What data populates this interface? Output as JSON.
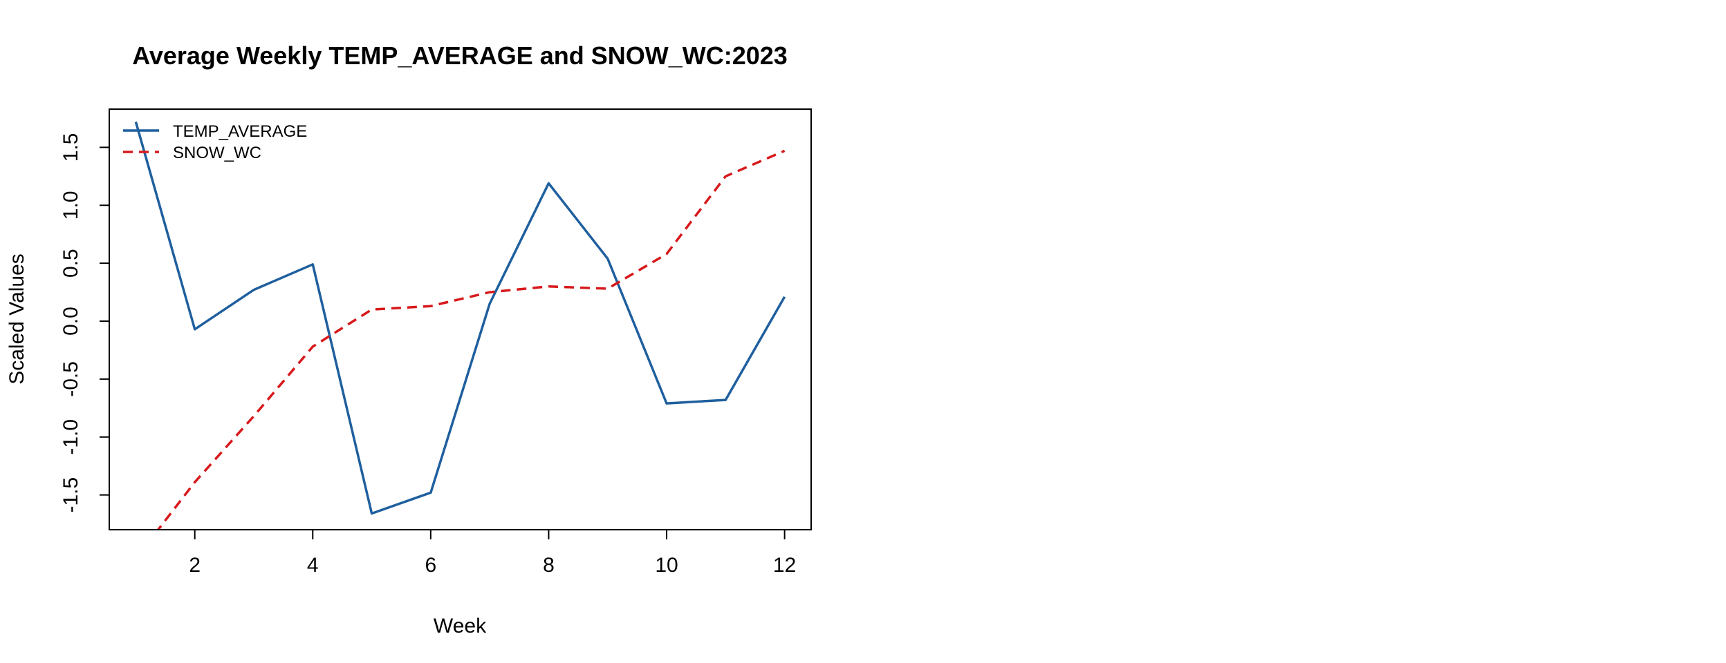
{
  "chart_data": {
    "type": "line",
    "title": "Average Weekly TEMP_AVERAGE and SNOW_WC:2023",
    "xlabel": "Week",
    "ylabel": "Scaled Values",
    "x": [
      1,
      2,
      3,
      4,
      5,
      6,
      7,
      8,
      9,
      10,
      11,
      12
    ],
    "xlim": [
      0.55,
      12.45
    ],
    "ylim": [
      -1.8,
      1.83
    ],
    "x_ticks": [
      2,
      4,
      6,
      8,
      10,
      12
    ],
    "x_tick_labels": [
      "2",
      "4",
      "6",
      "8",
      "10",
      "12"
    ],
    "y_ticks": [
      -1.5,
      -1.0,
      -0.5,
      0.0,
      0.5,
      1.0,
      1.5
    ],
    "y_tick_labels": [
      "-1.5",
      "-1.0",
      "-0.5",
      "0.0",
      "0.5",
      "1.0",
      "1.5"
    ],
    "grid": false,
    "legend_position": "top-left",
    "series": [
      {
        "name": "TEMP_AVERAGE",
        "color": "#1f5f9e",
        "line_style": "solid",
        "values": [
          1.72,
          -0.07,
          0.27,
          0.49,
          -1.66,
          -1.48,
          0.15,
          1.19,
          0.54,
          -0.71,
          -0.68,
          0.21
        ]
      },
      {
        "name": "SNOW_WC",
        "color": "#d7191c",
        "line_style": "dashed",
        "values": [
          -2.05,
          -1.39,
          -0.82,
          -0.22,
          0.1,
          0.13,
          0.25,
          0.3,
          0.28,
          0.58,
          1.25,
          1.47
        ]
      }
    ]
  }
}
